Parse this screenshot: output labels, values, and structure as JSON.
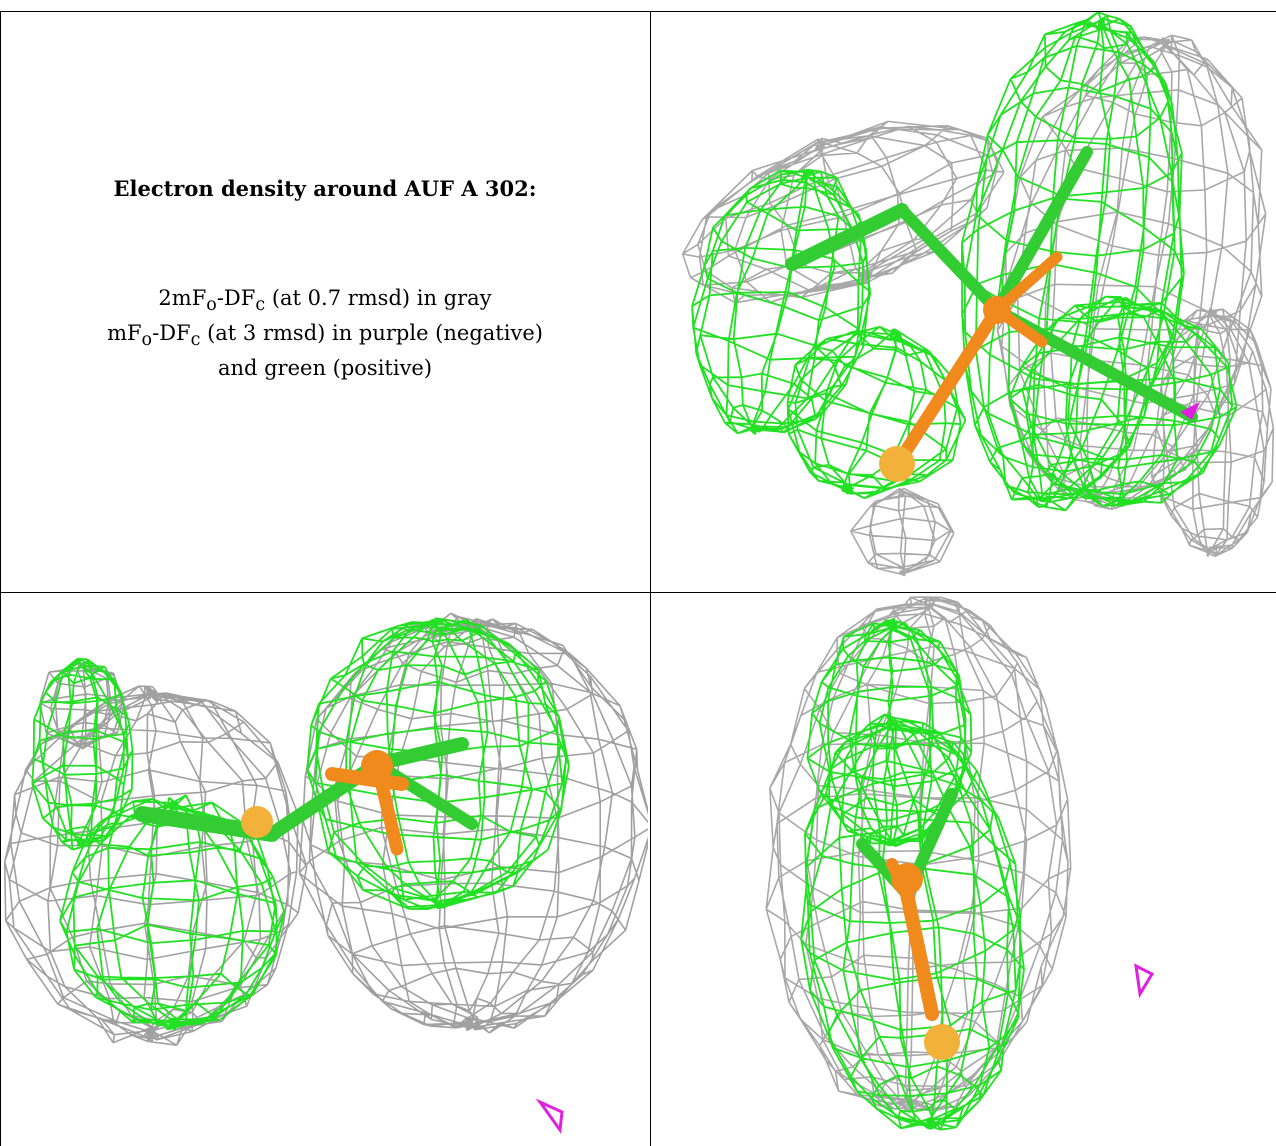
{
  "caption": {
    "title": "Electron density around AUF A 302:",
    "line1_a": "2mF",
    "line1_sub1": "o",
    "line1_b": "-DF",
    "line1_sub2": "c",
    "line1_c": " (at 0.7 rmsd) in gray",
    "line2_a": "mF",
    "line2_sub1": "o",
    "line2_b": "-DF",
    "line2_sub2": "c",
    "line2_c": " (at 3 rmsd) in purple (negative)",
    "line3": "and green (positive)"
  },
  "colors": {
    "gray_mesh": "#a8a8a8",
    "dark_mesh": "#6e6e6e",
    "green_mesh": "#22e022",
    "green_stick": "#33cc33",
    "orange_stick": "#f08a1c",
    "sulfur": "#f2b23a",
    "negative": "#e020e0"
  },
  "views": [
    {
      "name": "view-top-right"
    },
    {
      "name": "view-bottom-left"
    },
    {
      "name": "view-bottom-right"
    }
  ]
}
